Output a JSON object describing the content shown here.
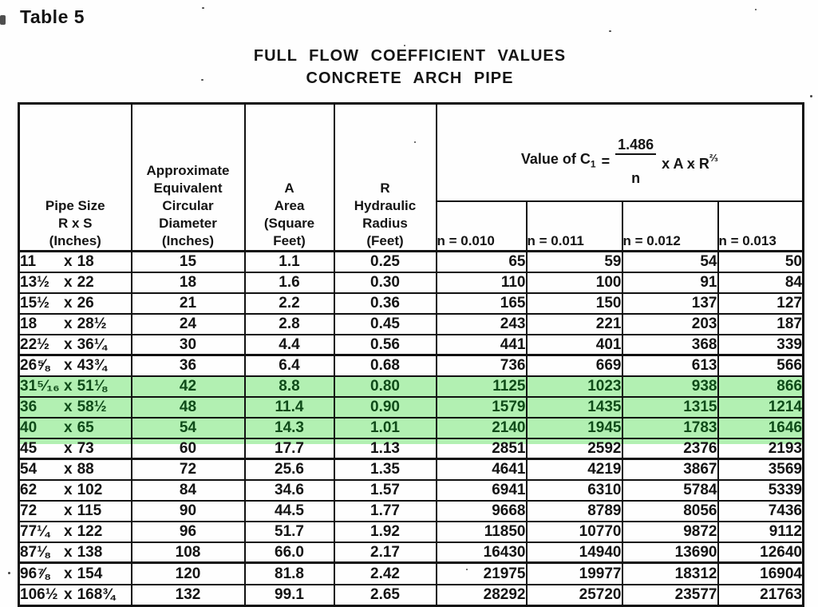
{
  "page": {
    "label": "Table 5"
  },
  "title": {
    "line1": "FULL FLOW COEFFICIENT VALUES",
    "line2": "CONCRETE ARCH PIPE"
  },
  "colors": {
    "highlight_bg": "#b2f0b2",
    "highlight_text": "#0f4b19",
    "ink": "#141414"
  },
  "table": {
    "headers": {
      "pipe_size": "Pipe Size\nR x S\n(Inches)",
      "diameter": "Approximate\nEquivalent\nCircular\nDiameter\n(Inches)",
      "area": "A\nArea\n(Square\nFeet)",
      "radius": "R\nHydraulic\nRadius\n(Feet)",
      "n_columns": [
        "n = 0.010",
        "n = 0.011",
        "n = 0.012",
        "n = 0.013"
      ]
    },
    "formula": {
      "prefix": "Value of C",
      "subscript": "1",
      "equals": "=",
      "numerator": "1.486",
      "denominator": "n",
      "suffix": "x A x R",
      "exponent": "⅔"
    },
    "pipe_separator": "x",
    "groups": [
      {
        "rows": [
          {
            "r": "11",
            "s": "18",
            "dia": "15",
            "area": "1.1",
            "hr": "0.25",
            "n": [
              "65",
              "59",
              "54",
              "50"
            ]
          },
          {
            "r": "13½",
            "s": "22",
            "dia": "18",
            "area": "1.6",
            "hr": "0.30",
            "n": [
              "110",
              "100",
              "91",
              "84"
            ]
          },
          {
            "r": "15½",
            "s": "26",
            "dia": "21",
            "area": "2.2",
            "hr": "0.36",
            "n": [
              "165",
              "150",
              "137",
              "127"
            ]
          },
          {
            "r": "18",
            "s": "28½",
            "dia": "24",
            "area": "2.8",
            "hr": "0.45",
            "n": [
              "243",
              "221",
              "203",
              "187"
            ]
          },
          {
            "r": "22½",
            "s": "36¼",
            "dia": "30",
            "area": "4.4",
            "hr": "0.56",
            "n": [
              "441",
              "401",
              "368",
              "339"
            ]
          }
        ]
      },
      {
        "rows": [
          {
            "r": "26⅝",
            "s": "43¾",
            "dia": "36",
            "area": "6.4",
            "hr": "0.68",
            "n": [
              "736",
              "669",
              "613",
              "566"
            ]
          },
          {
            "r": "31⁵⁄₁₆",
            "s": "51⅛",
            "dia": "42",
            "area": "8.8",
            "hr": "0.80",
            "n": [
              "1125",
              "1023",
              "938",
              "866"
            ],
            "highlight": true
          },
          {
            "r": "36",
            "s": "58½",
            "dia": "48",
            "area": "11.4",
            "hr": "0.90",
            "n": [
              "1579",
              "1435",
              "1315",
              "1214"
            ],
            "highlight": true
          },
          {
            "r": "40",
            "s": "65",
            "dia": "54",
            "area": "14.3",
            "hr": "1.01",
            "n": [
              "2140",
              "1945",
              "1783",
              "1646"
            ],
            "highlight": true
          },
          {
            "r": "45",
            "s": "73",
            "dia": "60",
            "area": "17.7",
            "hr": "1.13",
            "n": [
              "2851",
              "2592",
              "2376",
              "2193"
            ],
            "sliver": true
          }
        ]
      },
      {
        "rows": [
          {
            "r": "54",
            "s": "88",
            "dia": "72",
            "area": "25.6",
            "hr": "1.35",
            "n": [
              "4641",
              "4219",
              "3867",
              "3569"
            ]
          },
          {
            "r": "62",
            "s": "102",
            "dia": "84",
            "area": "34.6",
            "hr": "1.57",
            "n": [
              "6941",
              "6310",
              "5784",
              "5339"
            ]
          },
          {
            "r": "72",
            "s": "115",
            "dia": "90",
            "area": "44.5",
            "hr": "1.77",
            "n": [
              "9668",
              "8789",
              "8056",
              "7436"
            ]
          },
          {
            "r": "77¼",
            "s": "122",
            "dia": "96",
            "area": "51.7",
            "hr": "1.92",
            "n": [
              "11850",
              "10770",
              "9872",
              "9112"
            ]
          },
          {
            "r": "87⅛",
            "s": "138",
            "dia": "108",
            "area": "66.0",
            "hr": "2.17",
            "n": [
              "16430",
              "14940",
              "13690",
              "12640"
            ]
          }
        ]
      },
      {
        "rows": [
          {
            "r": "96⅞",
            "s": "154",
            "dia": "120",
            "area": "81.8",
            "hr": "2.42",
            "n": [
              "21975",
              "19977",
              "18312",
              "16904"
            ]
          },
          {
            "r": "106½",
            "s": "168¾",
            "dia": "132",
            "area": "99.1",
            "hr": "2.65",
            "n": [
              "28292",
              "25720",
              "23577",
              "21763"
            ]
          }
        ]
      }
    ]
  }
}
